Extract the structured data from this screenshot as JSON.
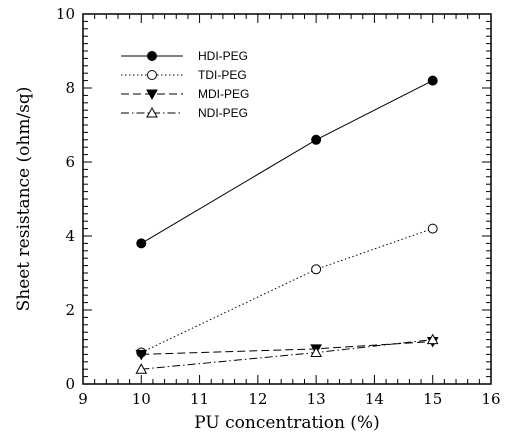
{
  "chart_data": {
    "type": "line",
    "title": "",
    "xlabel": "PU concentration (%)",
    "ylabel": "Sheet resistance (ohm/sq)",
    "xlim": [
      9,
      16
    ],
    "ylim": [
      0,
      10
    ],
    "x_ticks": [
      "9",
      "10",
      "11",
      "12",
      "13",
      "14",
      "15",
      "16"
    ],
    "y_ticks": [
      "0",
      "2",
      "4",
      "6",
      "8",
      "10"
    ],
    "legend_position": "top-left",
    "x": [
      10,
      13,
      15
    ],
    "series": [
      {
        "name": "HDI-PEG",
        "values": [
          3.8,
          6.6,
          8.2
        ],
        "marker": "filled-circle",
        "line": "solid"
      },
      {
        "name": "TDI-PEG",
        "values": [
          0.85,
          3.1,
          4.2
        ],
        "marker": "open-circle",
        "line": "dotted"
      },
      {
        "name": "MDI-PEG",
        "values": [
          0.8,
          0.95,
          1.15
        ],
        "marker": "filled-down-triangle",
        "line": "dashed"
      },
      {
        "name": "NDI-PEG",
        "values": [
          0.4,
          0.85,
          1.2
        ],
        "marker": "open-up-triangle",
        "line": "dash-dot"
      }
    ]
  }
}
